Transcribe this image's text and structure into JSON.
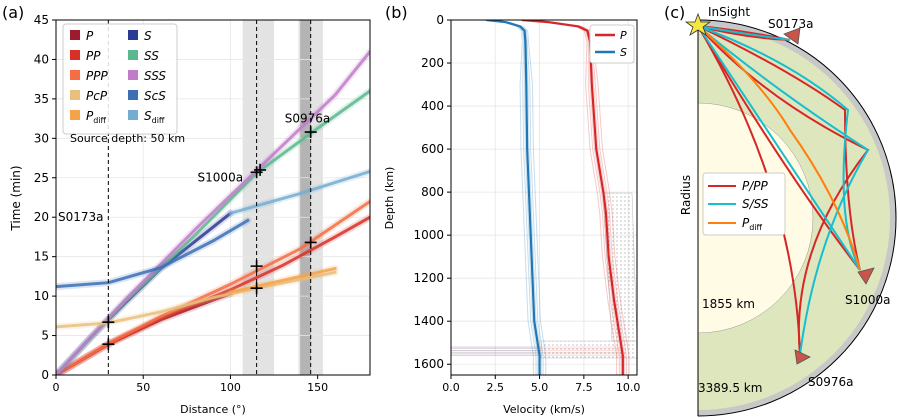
{
  "figure": {
    "panel_labels": [
      "(a)",
      "(b)",
      "(c)"
    ]
  },
  "chart_data": [
    {
      "type": "line",
      "panel": "(a)",
      "title": "",
      "xlabel": "Distance (°)",
      "ylabel": "Time (min)",
      "xlim": [
        0,
        180
      ],
      "ylim": [
        0,
        45
      ],
      "xticks": [
        0,
        50,
        100,
        150
      ],
      "yticks": [
        0,
        5,
        10,
        15,
        20,
        25,
        30,
        35,
        40,
        45
      ],
      "grid": true,
      "legend_position": "top-left",
      "source_depth_note": "Source depth: 50 km",
      "legend": [
        {
          "label": "P",
          "color": "#9e1b2f"
        },
        {
          "label": "S",
          "color": "#2b3a94"
        },
        {
          "label": "PP",
          "color": "#d73027"
        },
        {
          "label": "SS",
          "color": "#5ab88f"
        },
        {
          "label": "PPP",
          "color": "#f46d43"
        },
        {
          "label": "SSS",
          "color": "#c07cc9"
        },
        {
          "label": "PcP",
          "color": "#e8c07d"
        },
        {
          "label": "ScS",
          "color": "#3b6fb6"
        },
        {
          "label": "P",
          "sub": "diff",
          "color": "#f6a24a"
        },
        {
          "label": "S",
          "sub": "diff",
          "color": "#74add1"
        }
      ],
      "series": [
        {
          "name": "P",
          "color": "#9e1b2f",
          "x": [
            0,
            30,
            60,
            90,
            100
          ],
          "y": [
            0,
            3.9,
            7.0,
            9.5,
            10.3
          ]
        },
        {
          "name": "PP",
          "color": "#d73027",
          "x": [
            0,
            30,
            60,
            100,
            130,
            160,
            180
          ],
          "y": [
            0,
            3.9,
            7.2,
            10.8,
            13.9,
            17.5,
            20.0
          ]
        },
        {
          "name": "PPP",
          "color": "#f46d43",
          "x": [
            0,
            30,
            60,
            100,
            140,
            180
          ],
          "y": [
            0,
            4.0,
            7.4,
            11.5,
            16.0,
            22.0
          ]
        },
        {
          "name": "S",
          "color": "#2b3a94",
          "x": [
            0,
            20,
            40,
            60,
            80,
            100
          ],
          "y": [
            0,
            4.8,
            9.2,
            13.5,
            17.0,
            20.5
          ]
        },
        {
          "name": "SS",
          "color": "#5ab88f",
          "x": [
            0,
            40,
            80,
            115,
            147,
            180
          ],
          "y": [
            0,
            9.4,
            17.8,
            25.6,
            30.8,
            36.0
          ]
        },
        {
          "name": "SSS",
          "color": "#c07cc9",
          "x": [
            0,
            40,
            80,
            120,
            160,
            180
          ],
          "y": [
            0,
            9.6,
            18.5,
            27.0,
            35.5,
            41.0
          ]
        },
        {
          "name": "PcP",
          "color": "#e8c07d",
          "x": [
            0,
            30,
            60,
            90,
            115,
            160
          ],
          "y": [
            6.1,
            6.6,
            8.0,
            9.8,
            11.0,
            13.0
          ]
        },
        {
          "name": "ScS",
          "color": "#3b6fb6",
          "x": [
            0,
            30,
            60,
            90,
            110
          ],
          "y": [
            11.2,
            11.7,
            13.6,
            17.0,
            19.6
          ]
        },
        {
          "name": "Pdiff",
          "color": "#f6a24a",
          "x": [
            100,
            130,
            160
          ],
          "y": [
            10.5,
            12.0,
            13.5
          ]
        },
        {
          "name": "Sdiff",
          "color": "#74add1",
          "x": [
            100,
            140,
            180
          ],
          "y": [
            20.5,
            23.0,
            25.8
          ]
        }
      ],
      "shaded_ranges": [
        {
          "x": [
            107,
            125
          ]
        },
        {
          "x": [
            139,
            153
          ]
        }
      ],
      "dark_band": {
        "x": [
          140,
          146
        ]
      },
      "event_lines": [
        {
          "name": "S0173a",
          "x": 30
        },
        {
          "name": "S1000a",
          "x": 115
        },
        {
          "name": "S0976a",
          "x": 146
        }
      ],
      "event_labels": [
        {
          "text": "S0173a",
          "x_anchor": 0,
          "y_anchor": 19.5
        },
        {
          "text": "S1000a",
          "x_anchor": 80,
          "y_anchor": 24.5
        },
        {
          "text": "S0976a",
          "x_anchor": 130,
          "y_anchor": 32
        }
      ],
      "picks": [
        {
          "event": "S0173a",
          "x": 30,
          "y": 3.9
        },
        {
          "event": "S0173a",
          "x": 30,
          "y": 6.7
        },
        {
          "event": "S1000a",
          "x": 115,
          "y": 11.0
        },
        {
          "event": "S1000a",
          "x": 115,
          "y": 13.8
        },
        {
          "event": "S1000a",
          "x": 115,
          "y": 25.7
        },
        {
          "event": "S1000a",
          "x": 117,
          "y": 26.0
        },
        {
          "event": "S0976a",
          "x": 146,
          "y": 16.8
        },
        {
          "event": "S0976a",
          "x": 146,
          "y": 30.8
        }
      ]
    },
    {
      "type": "line",
      "panel": "(b)",
      "xlabel": "Velocity (km/s)",
      "ylabel": "Depth (km)",
      "xlim": [
        0,
        10.5
      ],
      "ylim": [
        1650,
        0
      ],
      "xticks": [
        0.0,
        2.5,
        5.0,
        7.5,
        10.0
      ],
      "xtick_labels": [
        "0.0",
        "2.5",
        "5.0",
        "7.5",
        "10.0"
      ],
      "yticks": [
        0,
        200,
        400,
        600,
        800,
        1000,
        1200,
        1400,
        1600
      ],
      "grid": true,
      "legend_position": "top-right",
      "legend": [
        {
          "label": "P",
          "color": "#d62728"
        },
        {
          "label": "S",
          "color": "#1f77b4"
        }
      ],
      "series": [
        {
          "name": "P",
          "color": "#d62728",
          "depth": [
            0,
            10,
            30,
            50,
            100,
            300,
            600,
            800,
            900,
            1100,
            1300,
            1560,
            1650
          ],
          "velocity": [
            4.0,
            5.5,
            7.2,
            7.7,
            7.85,
            7.95,
            8.2,
            8.6,
            8.75,
            8.9,
            9.2,
            9.7,
            9.7
          ]
        },
        {
          "name": "S",
          "color": "#1f77b4",
          "depth": [
            0,
            10,
            30,
            50,
            100,
            300,
            600,
            900,
            1100,
            1400,
            1560,
            1650
          ],
          "velocity": [
            2.0,
            3.1,
            3.9,
            4.15,
            4.2,
            4.25,
            4.3,
            4.45,
            4.55,
            4.7,
            5.0,
            5.0
          ]
        }
      ]
    },
    {
      "type": "diagram",
      "panel": "(c)",
      "title": "",
      "ylabel": "Radius",
      "station": "InSight",
      "core_radius_label": "1855 km",
      "planet_radius_label": "3389.5 km",
      "events": [
        "S0173a",
        "S1000a",
        "S0976a"
      ],
      "legend": [
        {
          "label": "P/PP",
          "color": "#d62728"
        },
        {
          "label": "S/SS",
          "color": "#17becf"
        },
        {
          "label": "P",
          "sub": "diff",
          "color": "#ff7f0e"
        }
      ],
      "colors": {
        "mantle": "#dde6bd",
        "core": "#fffbe5",
        "crust": "#c8c8c8",
        "station": "#f5e642",
        "event": "#c8554a"
      }
    }
  ]
}
